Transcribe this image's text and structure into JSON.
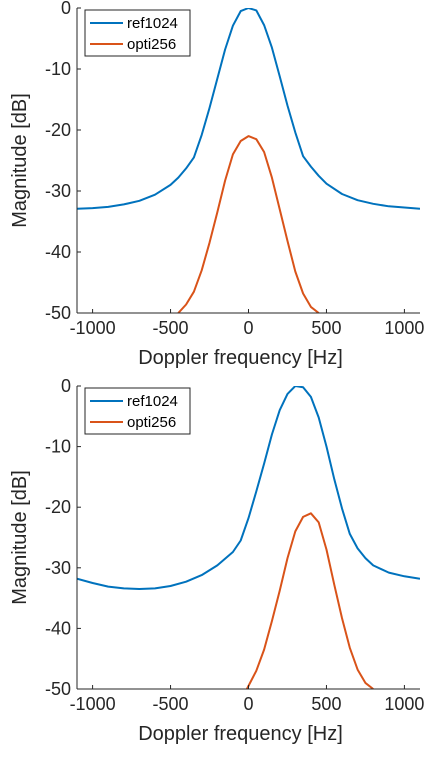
{
  "colors": {
    "ref": "#0072BD",
    "opti": "#D95319",
    "axis": "#262626"
  },
  "chart_data": [
    {
      "type": "line",
      "xlabel": "Doppler frequency [Hz]",
      "ylabel": "Magnitude [dB]",
      "xlim": [
        -1100,
        1100
      ],
      "ylim": [
        -50,
        0
      ],
      "xticks": [
        -1000,
        -500,
        0,
        500,
        1000
      ],
      "yticks": [
        -50,
        -40,
        -30,
        -20,
        -10,
        0
      ],
      "xtick_labels": [
        "-1000",
        "-500",
        "0",
        "500",
        "1000"
      ],
      "ytick_labels": [
        "-50",
        "-40",
        "-30",
        "-20",
        "-10",
        "0"
      ],
      "legend": {
        "position": "top-left",
        "entries": [
          "ref1024",
          "opti256"
        ]
      },
      "series": [
        {
          "name": "ref1024",
          "x": [
            -1100,
            -1000,
            -900,
            -800,
            -700,
            -600,
            -500,
            -450,
            -400,
            -350,
            -300,
            -250,
            -200,
            -150,
            -100,
            -50,
            0,
            50,
            100,
            150,
            200,
            250,
            300,
            350,
            400,
            450,
            500,
            600,
            700,
            800,
            900,
            1000,
            1100
          ],
          "y": [
            -32.9,
            -32.8,
            -32.6,
            -32.2,
            -31.6,
            -30.6,
            -29.0,
            -27.8,
            -26.3,
            -24.5,
            -20.8,
            -16.4,
            -11.6,
            -6.8,
            -2.9,
            -0.5,
            0,
            -0.4,
            -2.8,
            -6.5,
            -11.2,
            -16.0,
            -20.4,
            -24.3,
            -26.0,
            -27.5,
            -28.8,
            -30.5,
            -31.5,
            -32.1,
            -32.5,
            -32.7,
            -32.9
          ]
        },
        {
          "name": "opti256",
          "x": [
            -450,
            -400,
            -350,
            -300,
            -250,
            -200,
            -150,
            -100,
            -50,
            0,
            50,
            100,
            150,
            200,
            250,
            300,
            350,
            400,
            450
          ],
          "y": [
            -50,
            -48.6,
            -46.5,
            -43.0,
            -38.5,
            -33.5,
            -28.3,
            -24.0,
            -21.8,
            -21.0,
            -21.5,
            -23.6,
            -27.8,
            -33.0,
            -38.2,
            -43.2,
            -46.8,
            -49.0,
            -50
          ]
        }
      ]
    },
    {
      "type": "line",
      "xlabel": "Doppler frequency [Hz]",
      "ylabel": "Magnitude [dB]",
      "xlim": [
        -1100,
        1100
      ],
      "ylim": [
        -50,
        0
      ],
      "xticks": [
        -1000,
        -500,
        0,
        500,
        1000
      ],
      "yticks": [
        -50,
        -40,
        -30,
        -20,
        -10,
        0
      ],
      "xtick_labels": [
        "-1000",
        "-500",
        "0",
        "500",
        "1000"
      ],
      "ytick_labels": [
        "-50",
        "-40",
        "-30",
        "-20",
        "-10",
        "0"
      ],
      "legend": {
        "position": "top-left",
        "entries": [
          "ref1024",
          "opti256"
        ]
      },
      "series": [
        {
          "name": "ref1024",
          "x": [
            -1100,
            -1000,
            -900,
            -800,
            -700,
            -600,
            -500,
            -400,
            -300,
            -200,
            -100,
            -50,
            0,
            50,
            100,
            150,
            200,
            250,
            300,
            350,
            400,
            450,
            500,
            550,
            600,
            650,
            700,
            750,
            800,
            900,
            1000,
            1100
          ],
          "y": [
            -31.8,
            -32.5,
            -33.1,
            -33.4,
            -33.5,
            -33.4,
            -33.0,
            -32.3,
            -31.2,
            -29.6,
            -27.4,
            -25.5,
            -21.8,
            -17.4,
            -12.8,
            -8.0,
            -4.0,
            -1.3,
            0,
            -0.2,
            -1.8,
            -5.2,
            -10.0,
            -15.4,
            -20.2,
            -24.4,
            -26.8,
            -28.4,
            -29.6,
            -30.8,
            -31.4,
            -31.8
          ]
        },
        {
          "name": "opti256",
          "x": [
            -10,
            50,
            100,
            150,
            200,
            250,
            300,
            350,
            400,
            450,
            500,
            550,
            600,
            650,
            700,
            750,
            800
          ],
          "y": [
            -50,
            -47.0,
            -43.5,
            -38.8,
            -33.8,
            -28.4,
            -24.0,
            -21.6,
            -21.0,
            -22.5,
            -27.0,
            -32.8,
            -38.3,
            -43.2,
            -46.8,
            -49.0,
            -50
          ]
        }
      ]
    }
  ]
}
